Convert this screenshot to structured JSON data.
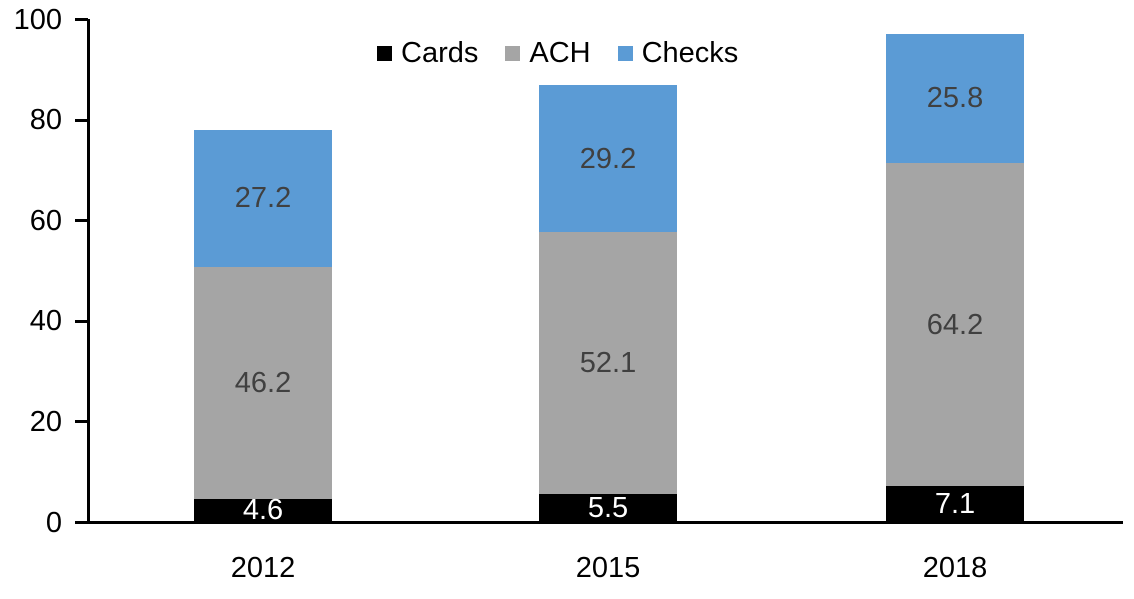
{
  "chart_data": {
    "type": "bar",
    "stacked": true,
    "title": "",
    "xlabel": "",
    "ylabel": "",
    "categories": [
      "2012",
      "2015",
      "2018"
    ],
    "series": [
      {
        "name": "Cards",
        "color": "#000000",
        "label_color": "#ffffff",
        "values": [
          4.6,
          5.5,
          7.1
        ]
      },
      {
        "name": "ACH",
        "color": "#a5a5a5",
        "label_color": "#404040",
        "values": [
          46.2,
          52.1,
          64.2
        ]
      },
      {
        "name": "Checks",
        "color": "#5b9bd5",
        "label_color": "#404040",
        "values": [
          27.2,
          29.2,
          25.8
        ]
      }
    ],
    "ylim": [
      0,
      100
    ],
    "yticks": [
      0,
      20,
      40,
      60,
      80,
      100
    ],
    "grid": false,
    "legend_position": "top",
    "value_labels_shown": true,
    "axis_color": "#000000",
    "background_color": "#ffffff"
  }
}
